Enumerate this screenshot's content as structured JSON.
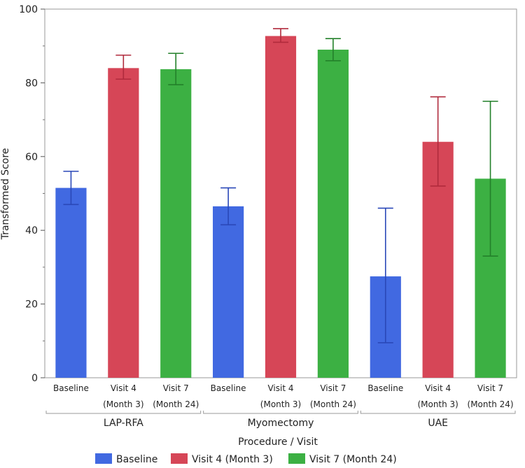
{
  "chart_data": {
    "type": "bar",
    "title": "",
    "xlabel": "Procedure / Visit",
    "ylabel": "Transformed Score",
    "ylim": [
      0,
      100
    ],
    "yticks": [
      0,
      20,
      40,
      60,
      80,
      100
    ],
    "grid": false,
    "legend_position": "bottom",
    "groups": [
      "LAP-RFA",
      "Myomectomy",
      "UAE"
    ],
    "visits": [
      {
        "name": "Baseline",
        "line1": "Baseline",
        "line2": "",
        "color": "#4169e1",
        "err_color": "#2a48b8"
      },
      {
        "name": "Visit 4 (Month 3)",
        "line1": "Visit 4",
        "line2": "(Month 3)",
        "color": "#d64657",
        "err_color": "#b02a3c"
      },
      {
        "name": "Visit 7 (Month 24)",
        "line1": "Visit 7",
        "line2": "(Month 24)",
        "color": "#3cb043",
        "err_color": "#23802a"
      }
    ],
    "series": [
      {
        "name": "Baseline",
        "values": [
          51.5,
          46.5,
          27.5
        ],
        "err_low": [
          47.0,
          41.5,
          9.5
        ],
        "err_high": [
          56.0,
          51.5,
          46.0
        ]
      },
      {
        "name": "Visit 4 (Month 3)",
        "values": [
          84.0,
          92.7,
          64.0
        ],
        "err_low": [
          81.0,
          91.0,
          52.0
        ],
        "err_high": [
          87.5,
          94.7,
          76.2
        ]
      },
      {
        "name": "Visit 7 (Month 24)",
        "values": [
          83.7,
          89.0,
          54.0
        ],
        "err_low": [
          79.5,
          86.0,
          33.0
        ],
        "err_high": [
          88.0,
          92.0,
          75.0
        ]
      }
    ]
  }
}
